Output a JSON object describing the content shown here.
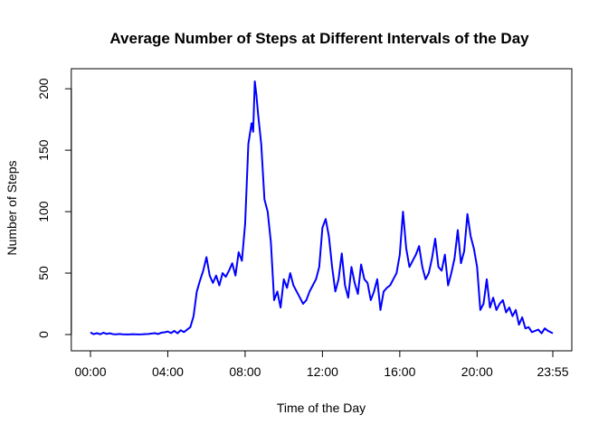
{
  "chart_data": {
    "type": "line",
    "title": "Average Number of Steps at Different Intervals of the Day",
    "xlabel": "Time of the Day",
    "ylabel": "Number of Steps",
    "x_unit": "minutes of day (00:00 = 0, 23:55 = 1435)",
    "xlim": [
      0,
      1435
    ],
    "ylim": [
      0,
      206
    ],
    "x_ticks": [
      {
        "value": 0,
        "label": "00:00"
      },
      {
        "value": 240,
        "label": "04:00"
      },
      {
        "value": 480,
        "label": "08:00"
      },
      {
        "value": 720,
        "label": "12:00"
      },
      {
        "value": 960,
        "label": "16:00"
      },
      {
        "value": 1200,
        "label": "20:00"
      },
      {
        "value": 1435,
        "label": "23:55"
      }
    ],
    "y_ticks": [
      0,
      50,
      100,
      150,
      200
    ],
    "grid": false,
    "legend": "none",
    "line_color": "#0000ff",
    "series": [
      {
        "x": [
          0,
          10,
          20,
          30,
          40,
          50,
          60,
          70,
          80,
          90,
          100,
          110,
          120,
          130,
          140,
          150,
          160,
          170,
          180,
          190,
          200,
          210,
          220,
          230,
          240,
          250,
          260,
          270,
          280,
          290,
          300,
          310,
          320,
          330,
          340,
          350,
          360,
          370,
          380,
          390,
          400,
          410,
          420,
          430,
          440,
          450,
          460,
          470,
          480,
          490,
          500,
          505,
          510,
          515,
          520,
          530,
          540,
          550,
          560,
          570,
          580,
          590,
          600,
          610,
          620,
          630,
          640,
          650,
          660,
          670,
          680,
          690,
          700,
          710,
          720,
          730,
          740,
          750,
          760,
          770,
          780,
          790,
          800,
          810,
          820,
          830,
          840,
          850,
          860,
          870,
          880,
          890,
          900,
          910,
          920,
          930,
          940,
          950,
          960,
          970,
          980,
          990,
          1000,
          1010,
          1020,
          1030,
          1040,
          1050,
          1060,
          1070,
          1080,
          1090,
          1100,
          1110,
          1120,
          1130,
          1140,
          1150,
          1160,
          1170,
          1180,
          1190,
          1200,
          1210,
          1220,
          1230,
          1240,
          1250,
          1260,
          1270,
          1280,
          1290,
          1300,
          1310,
          1320,
          1330,
          1340,
          1350,
          1360,
          1370,
          1380,
          1390,
          1400,
          1410,
          1420,
          1435
        ],
        "y": [
          1.7,
          0.3,
          1.1,
          0.2,
          1.5,
          0.5,
          1.0,
          0.3,
          0.2,
          0.5,
          0.2,
          0.1,
          0.1,
          0.3,
          0.2,
          0.1,
          0.2,
          0.4,
          0.5,
          0.8,
          1.1,
          0.4,
          1.5,
          1.8,
          2.5,
          1.2,
          3.0,
          1.0,
          3.5,
          2.0,
          4.0,
          6.0,
          15.0,
          35.0,
          44.0,
          52.0,
          63.0,
          48.0,
          42.0,
          48.0,
          40.0,
          50.0,
          47.0,
          52.0,
          58.0,
          48.0,
          67.0,
          60.0,
          90.0,
          155.0,
          172.0,
          165.0,
          206.0,
          195.0,
          180.0,
          155.0,
          110.0,
          100.0,
          75.0,
          28.0,
          35.0,
          22.0,
          45.0,
          38.0,
          50.0,
          40.0,
          35.0,
          30.0,
          25.0,
          28.0,
          35.0,
          40.0,
          45.0,
          55.0,
          87.0,
          94.0,
          80.0,
          55.0,
          35.0,
          45.0,
          66.0,
          40.0,
          30.0,
          55.0,
          42.0,
          33.0,
          57.0,
          45.0,
          42.0,
          28.0,
          35.0,
          45.0,
          20.0,
          35.0,
          38.0,
          40.0,
          45.0,
          50.0,
          65.0,
          100.0,
          70.0,
          55.0,
          60.0,
          65.0,
          72.0,
          55.0,
          45.0,
          50.0,
          62.0,
          78.0,
          55.0,
          52.0,
          65.0,
          40.0,
          50.0,
          62.0,
          85.0,
          58.0,
          68.0,
          98.0,
          80.0,
          70.0,
          55.0,
          20.0,
          25.0,
          45.0,
          22.0,
          30.0,
          20.0,
          25.0,
          28.0,
          18.0,
          22.0,
          15.0,
          20.0,
          8.0,
          14.0,
          5.0,
          6.0,
          2.0,
          3.0,
          4.0,
          1.0,
          5.0,
          3.0,
          1.0
        ]
      }
    ]
  }
}
